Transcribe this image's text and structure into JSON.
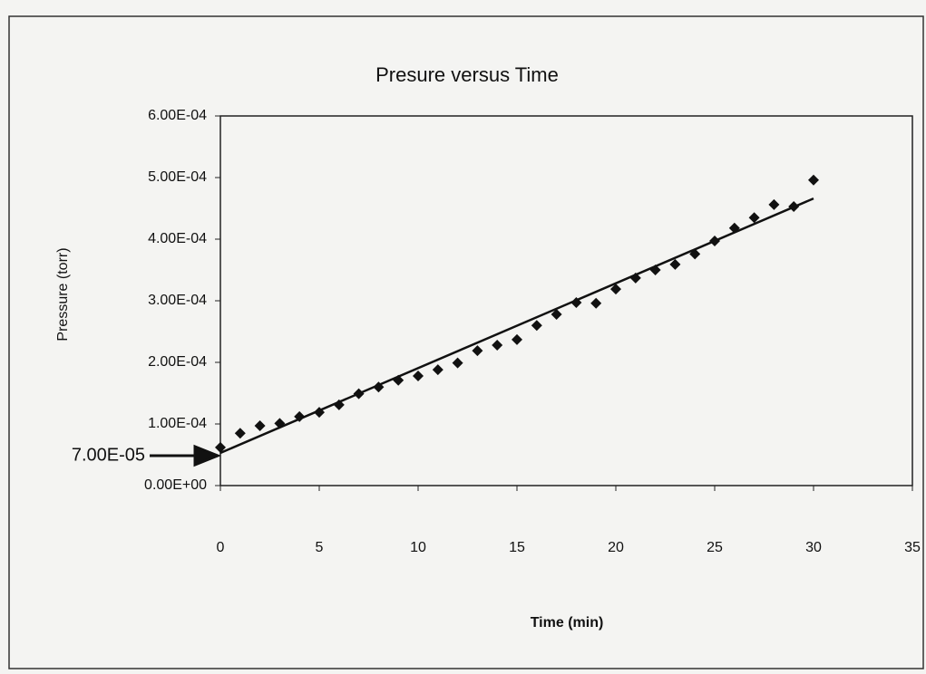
{
  "chart_data": {
    "type": "scatter",
    "title": "Presure versus Time",
    "x_label": "Time (min)",
    "y_label": "Pressure (torr)",
    "series": [
      {
        "color": "#111111",
        "x": [
          0,
          1,
          2,
          3,
          4,
          5,
          6,
          7,
          8,
          9,
          10,
          11,
          12,
          13,
          14,
          15,
          16,
          17,
          18,
          19,
          20,
          21,
          22,
          23,
          24,
          25,
          26,
          27,
          28,
          29,
          30
        ],
        "values": [
          6.2e-05,
          8.5e-05,
          9.7e-05,
          0.000101,
          0.000112,
          0.000119,
          0.000131,
          0.000149,
          0.00016,
          0.000171,
          0.000178,
          0.000188,
          0.000199,
          0.000219,
          0.000228,
          0.000237,
          0.00026,
          0.000278,
          0.000297,
          0.000296,
          0.000319,
          0.000337,
          0.00035,
          0.000359,
          0.000376,
          0.000397,
          0.000418,
          0.000435,
          0.000456,
          0.000453,
          0.000496
        ]
      }
    ],
    "trendline": {
      "color": "#111111",
      "x": [
        0,
        30
      ],
      "values": [
        5.3e-05,
        0.000466
      ]
    },
    "annotation": "7.00E-05",
    "xlim": [
      0,
      35
    ],
    "xticks": [
      0,
      5,
      10,
      15,
      20,
      25,
      30,
      35
    ],
    "ylim": [
      0,
      0.0006
    ],
    "yticks": [
      {
        "value": 0,
        "label": "0.00E+00"
      },
      {
        "value": 0.0001,
        "label": "1.00E-04"
      },
      {
        "value": 0.0002,
        "label": "2.00E-04"
      },
      {
        "value": 0.0003,
        "label": "3.00E-04"
      },
      {
        "value": 0.0004,
        "label": "4.00E-04"
      },
      {
        "value": 0.0005,
        "label": "5.00E-04"
      },
      {
        "value": 0.0006,
        "label": "6.00E-04"
      }
    ],
    "grid": false
  }
}
